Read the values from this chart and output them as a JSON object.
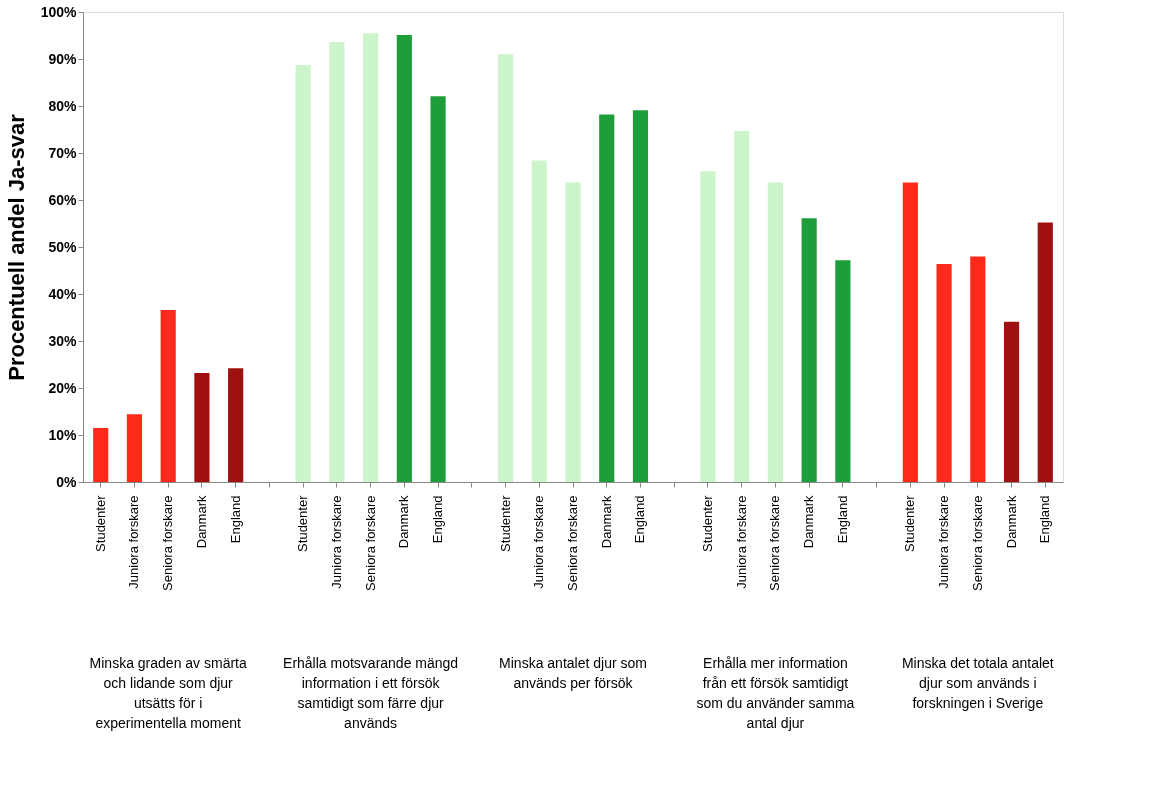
{
  "chart_data": {
    "type": "bar",
    "ylabel": "Procentuell andel Ja-svar",
    "categories": [
      "Studenter",
      "Juniora forskare",
      "Seniora forskare",
      "Danmark",
      "England",
      null,
      "Studenter",
      "Juniora forskare",
      "Seniora forskare",
      "Danmark",
      "England",
      null,
      "Studenter",
      "Juniora forskare",
      "Seniora forskare",
      "Danmark",
      "England",
      null,
      "Studenter",
      "Juniora forskare",
      "Seniora forskare",
      "Danmark",
      "England",
      null,
      "Studenter",
      "Juniora forskare",
      "Seniora forskare",
      "Danmark",
      "England"
    ],
    "values": [
      11.5,
      14.4,
      36.6,
      23.2,
      24.2,
      null,
      88.7,
      93.6,
      95.5,
      95.1,
      82.1,
      null,
      91.0,
      68.4,
      63.7,
      78.2,
      79.1,
      null,
      66.1,
      74.7,
      63.7,
      56.1,
      47.2,
      null,
      63.7,
      46.4,
      48.0,
      34.1,
      55.2
    ],
    "colors": [
      "#ff2a1a",
      "#ff2a1a",
      "#ff2a1a",
      "#a01010",
      "#a01010",
      null,
      "#ccf5cc",
      "#ccf5cc",
      "#ccf5cc",
      "#1e9e3a",
      "#1e9e3a",
      null,
      "#ccf5cc",
      "#ccf5cc",
      "#ccf5cc",
      "#1e9e3a",
      "#1e9e3a",
      null,
      "#ccf5cc",
      "#ccf5cc",
      "#ccf5cc",
      "#1e9e3a",
      "#1e9e3a",
      null,
      "#ff2a1a",
      "#ff2a1a",
      "#ff2a1a",
      "#a01010",
      "#a01010"
    ],
    "annotations": [
      "Minska graden av smärta och lidande som djur utsätts för i experimentella moment",
      "Erhålla motsvarande mängd information i ett försök samtidigt som färre djur används",
      "Minska antalet djur som används per försök",
      "Erhålla mer information från ett försök samtidigt som du använder samma antal djur",
      "Minska det totala antalet djur som används i forskningen i Sverige"
    ],
    "ylim": [
      0,
      100
    ],
    "yticks": [
      {
        "value": 0,
        "label": "0%"
      },
      {
        "value": 10,
        "label": "10%"
      },
      {
        "value": 20,
        "label": "20%"
      },
      {
        "value": 30,
        "label": "30%"
      },
      {
        "value": 40,
        "label": "40%"
      },
      {
        "value": 50,
        "label": "50%"
      },
      {
        "value": 60,
        "label": "60%"
      },
      {
        "value": 70,
        "label": "70%"
      },
      {
        "value": 80,
        "label": "80%"
      },
      {
        "value": 90,
        "label": "90%"
      },
      {
        "value": 100,
        "label": "100%"
      }
    ],
    "grid": false
  }
}
